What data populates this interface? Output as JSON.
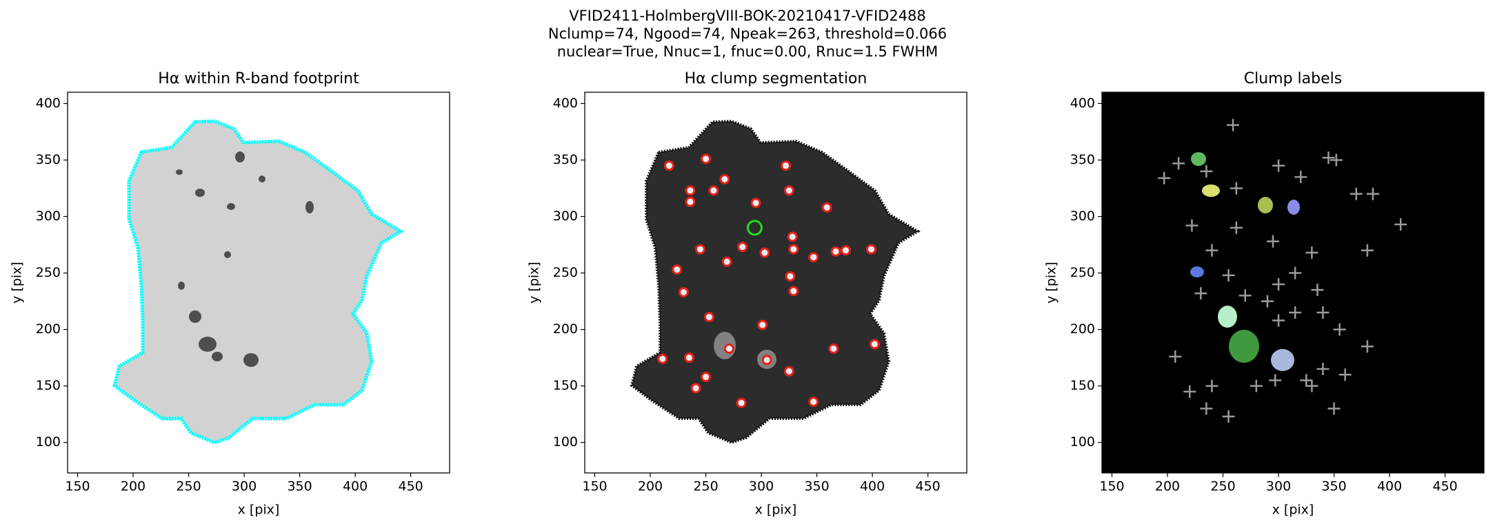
{
  "title": [
    "VFID2411-HolmbergVIII-BOK-20210417-VFID2488",
    "Nclump=74, Ngood=74, Npeak=263, threshold=0.066",
    "nuclear=True, Nnuc=1, fnuc=0.00, Rnuc=1.5 FWHM"
  ],
  "chart_data": [
    {
      "type": "image",
      "title": "Hα within R-band footprint",
      "xlabel": "x [pix]",
      "ylabel": "y [pix]",
      "xlim": [
        141,
        485
      ],
      "ylim": [
        73,
        410
      ],
      "xticks": [
        150,
        200,
        250,
        300,
        350,
        400,
        450
      ],
      "yticks": [
        100,
        150,
        200,
        250,
        300,
        350,
        400
      ]
    },
    {
      "type": "scatter",
      "title": "Hα clump segmentation",
      "xlabel": "x [pix]",
      "ylabel": "y [pix]",
      "xlim": [
        141,
        485
      ],
      "ylim": [
        73,
        410
      ],
      "xticks": [
        150,
        200,
        250,
        300,
        350,
        400,
        450
      ],
      "yticks": [
        100,
        150,
        200,
        250,
        300,
        350,
        400
      ],
      "color": "#e8201a",
      "x": [
        250,
        271,
        305,
        253,
        295,
        322,
        325,
        359,
        217,
        236,
        245,
        269,
        283,
        328,
        329,
        347,
        326,
        329,
        301,
        235,
        250,
        241,
        211,
        224,
        230,
        365,
        402,
        399,
        376,
        282,
        325,
        347,
        367,
        303,
        267,
        257,
        236
      ],
      "values": [
        351,
        183,
        173,
        211,
        312,
        345,
        323,
        308,
        345,
        313,
        271,
        260,
        273,
        282,
        271,
        264,
        247,
        234,
        204,
        175,
        158,
        148,
        174,
        253,
        233,
        183,
        187,
        271,
        270,
        135,
        163,
        136,
        269,
        268,
        333,
        323,
        323
      ],
      "nucleus": {
        "x": 294,
        "y": 290,
        "color": "#22dd22"
      }
    },
    {
      "type": "scatter",
      "title": "Clump labels",
      "xlabel": "x [pix]",
      "ylabel": "y [pix]",
      "xlim": [
        141,
        485
      ],
      "ylim": [
        73,
        410
      ],
      "xticks": [
        150,
        200,
        250,
        300,
        350,
        400,
        450
      ],
      "yticks": [
        100,
        150,
        200,
        250,
        300,
        350,
        400
      ],
      "color": "#9a9a9a",
      "x": [
        259,
        197,
        210,
        235,
        262,
        300,
        320,
        345,
        352,
        262,
        222,
        240,
        295,
        330,
        370,
        385,
        410,
        380,
        315,
        335,
        230,
        270,
        290,
        300,
        355,
        380,
        360,
        340,
        330,
        297,
        280,
        240,
        235,
        220,
        207,
        255,
        325,
        350,
        315,
        340,
        255,
        300
      ],
      "values": [
        381,
        334,
        347,
        340,
        325,
        345,
        335,
        352,
        350,
        290,
        292,
        270,
        278,
        268,
        320,
        320,
        293,
        270,
        250,
        235,
        232,
        230,
        225,
        208,
        200,
        185,
        160,
        165,
        150,
        155,
        150,
        150,
        130,
        145,
        176,
        123,
        155,
        130,
        215,
        215,
        248,
        240
      ]
    }
  ]
}
